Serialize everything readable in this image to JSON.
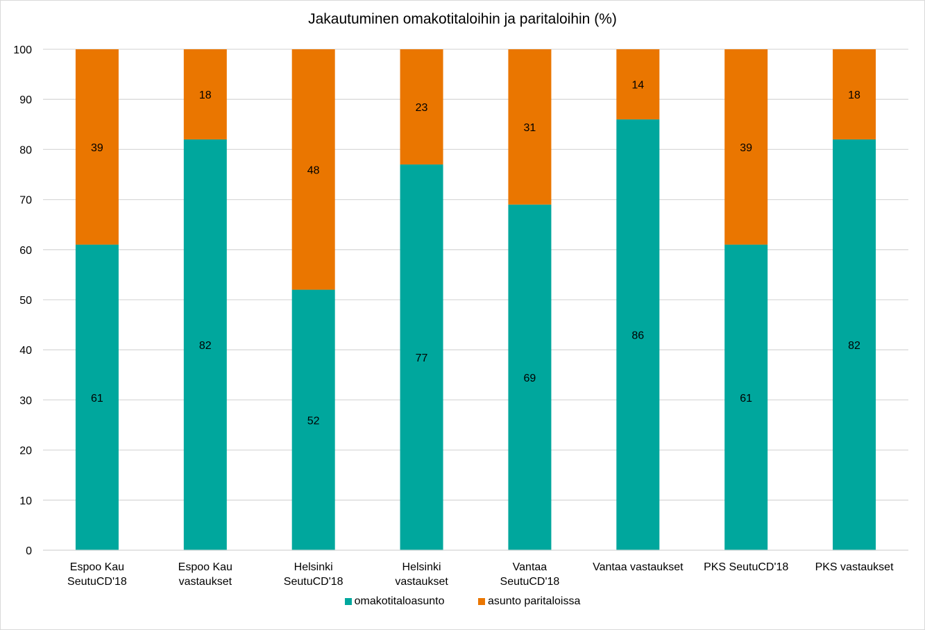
{
  "chart_data": {
    "type": "bar",
    "stacked": true,
    "title": "Jakautuminen omakotitaloihin ja paritaloihin (%)",
    "xlabel": "",
    "ylabel": "",
    "ylim": [
      0,
      100
    ],
    "yticks": [
      0,
      10,
      20,
      30,
      40,
      50,
      60,
      70,
      80,
      90,
      100
    ],
    "grid": true,
    "legend_position": "bottom",
    "categories": [
      [
        "Espoo Kau",
        "SeutuCD'18"
      ],
      [
        "Espoo Kau",
        "vastaukset"
      ],
      [
        "Helsinki",
        "SeutuCD'18"
      ],
      [
        "Helsinki",
        "vastaukset"
      ],
      [
        "Vantaa",
        "SeutuCD'18"
      ],
      [
        "Vantaa vastaukset"
      ],
      [
        "PKS SeutuCD'18"
      ],
      [
        "PKS vastaukset"
      ]
    ],
    "series": [
      {
        "name": "omakotitaloasunto",
        "color": "#00A79D",
        "values": [
          61,
          82,
          52,
          77,
          69,
          86,
          61,
          82
        ]
      },
      {
        "name": "asunto paritaloissa",
        "color": "#EA7600",
        "values": [
          39,
          18,
          48,
          23,
          31,
          14,
          39,
          18
        ]
      }
    ],
    "data_labels": true
  },
  "colors": {
    "gridline": "#d9d9d9",
    "axis": "#d9d9d9"
  }
}
